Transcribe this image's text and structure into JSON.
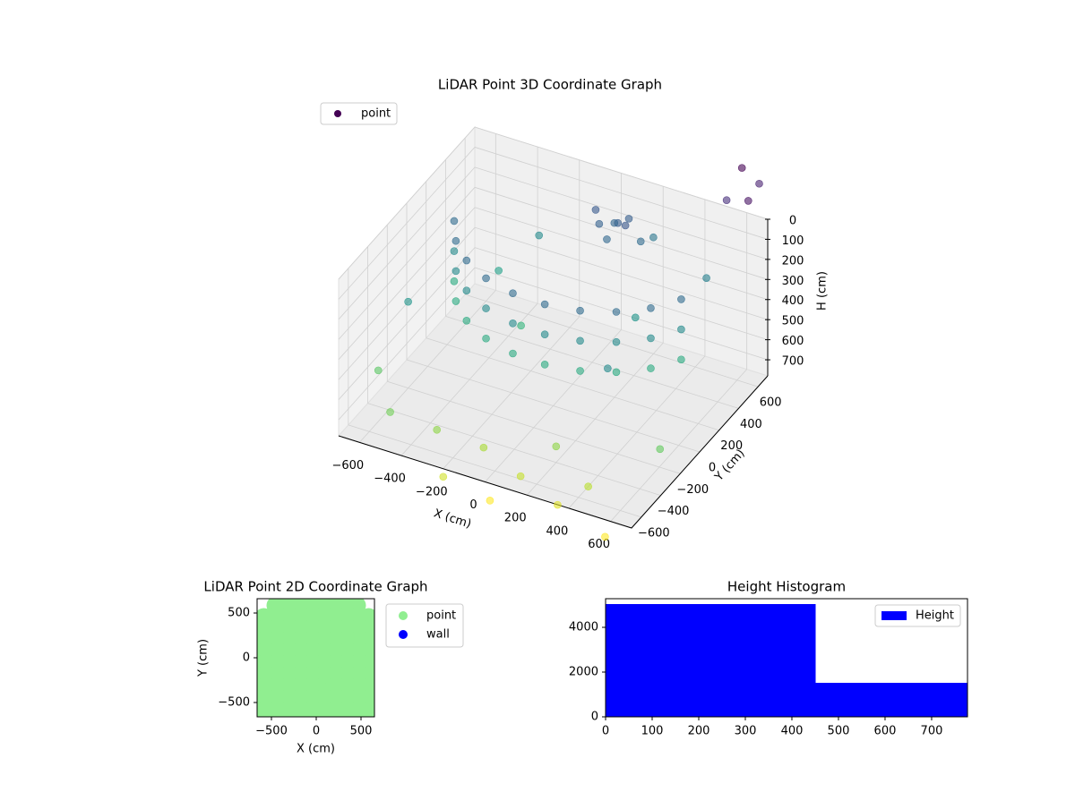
{
  "chart_data": [
    {
      "type": "scatter3d",
      "title": "LiDAR Point 3D Coordinate Graph",
      "x_label": "X (cm)",
      "y_label": "Y (cm)",
      "z_label": "H (cm)",
      "xlim": [
        -700,
        700
      ],
      "ylim": [
        -700,
        700
      ],
      "zlim": [
        0,
        780
      ],
      "z_inverted": true,
      "xticks": [
        {
          "value": -600,
          "label": "−600"
        },
        {
          "value": -400,
          "label": "−400"
        },
        {
          "value": -200,
          "label": "−200"
        },
        0,
        200,
        400,
        600
      ],
      "yticks": [
        {
          "value": -600,
          "label": "−600"
        },
        {
          "value": -400,
          "label": "−400"
        },
        {
          "value": -200,
          "label": "−200"
        },
        0,
        200,
        400,
        600
      ],
      "zticks": [
        0,
        100,
        200,
        300,
        400,
        500,
        600,
        700
      ],
      "grid": true,
      "legend": "upper left",
      "colormap": "viridis",
      "series": [
        {
          "name": "point",
          "color": "#440154",
          "x": [
            -564,
            -491,
            -386,
            -254,
            -104,
            52,
            205,
            344,
            460,
            544,
            -564,
            -491,
            -386,
            -254,
            -104,
            52,
            205,
            344,
            460,
            544,
            -564,
            -491,
            -386,
            -254,
            -104,
            52,
            205,
            344,
            460,
            544,
            100,
            60,
            150,
            20,
            120,
            200,
            -20,
            80,
            -400,
            300,
            -200,
            400,
            -600,
            500,
            -300,
            200,
            -100,
            100,
            300,
            0,
            -300,
            200,
            -500,
            400,
            -200,
            550,
            -650,
            650,
            600,
            700,
            650,
            550
          ],
          "y": [
            195,
            56,
            -60,
            -144,
            -191,
            -198,
            -164,
            -91,
            14,
            146,
            195,
            56,
            -60,
            -144,
            -191,
            -198,
            -164,
            -91,
            14,
            146,
            195,
            56,
            -60,
            -144,
            -191,
            -198,
            -164,
            -91,
            14,
            146,
            450,
            500,
            420,
            430,
            520,
            470,
            480,
            380,
            300,
            200,
            100,
            -300,
            -200,
            500,
            500,
            600,
            -500,
            -550,
            -600,
            -650,
            -550,
            -400,
            -600,
            -500,
            -700,
            -650,
            -400,
            -300,
            650,
            500,
            720,
            600
          ],
          "z": [
            150,
            150,
            150,
            150,
            150,
            150,
            150,
            150,
            150,
            150,
            300,
            300,
            300,
            300,
            300,
            300,
            300,
            300,
            300,
            300,
            450,
            450,
            450,
            450,
            450,
            450,
            450,
            450,
            450,
            450,
            80,
            120,
            60,
            100,
            90,
            150,
            70,
            130,
            400,
            350,
            500,
            300,
            350,
            250,
            300,
            200,
            750,
            800,
            850,
            900,
            700,
            700,
            650,
            780,
            820,
            900,
            600,
            620,
            -250,
            -200,
            -150,
            -100
          ]
        }
      ]
    },
    {
      "type": "scatter",
      "title": "LiDAR Point 2D Coordinate Graph",
      "x_label": "X (cm)",
      "y_label": "Y (cm)",
      "xlim": [
        -660,
        650
      ],
      "ylim": [
        -660,
        660
      ],
      "xticks": [
        {
          "value": -500,
          "label": "−500"
        },
        0,
        500
      ],
      "yticks": [
        {
          "value": -500,
          "label": "−500"
        },
        0,
        500
      ],
      "legend": "outside right",
      "series": [
        {
          "name": "point",
          "color": "#90ee90",
          "x": [
            -455,
            -325,
            -195,
            -65,
            65,
            195,
            325,
            455,
            -585,
            -455,
            -325,
            -195,
            -65,
            65,
            195,
            325,
            455,
            585,
            -585,
            -455,
            -325,
            -195,
            -65,
            65,
            195,
            325,
            455,
            585,
            -585,
            -455,
            -325,
            -195,
            -65,
            65,
            195,
            325,
            455,
            585,
            -585,
            -455,
            -325,
            -195,
            -65,
            65,
            195,
            325,
            455,
            585,
            -585,
            -455,
            -325,
            -195,
            -65,
            65,
            195,
            325,
            455,
            585,
            -585,
            -455,
            -325,
            -195,
            -65,
            65,
            195,
            325,
            455,
            585,
            -585,
            -455,
            -325,
            -195,
            -65,
            65,
            195,
            325,
            455,
            585,
            -585,
            -455,
            -325,
            -195,
            -65,
            65,
            195,
            325,
            455,
            585,
            -585,
            -455,
            -325,
            -195,
            -65,
            65,
            195,
            325,
            455,
            585
          ],
          "y": [
            585,
            585,
            585,
            585,
            585,
            585,
            585,
            585,
            455,
            455,
            455,
            455,
            455,
            455,
            455,
            455,
            455,
            455,
            325,
            325,
            325,
            325,
            325,
            325,
            325,
            325,
            325,
            325,
            195,
            195,
            195,
            195,
            195,
            195,
            195,
            195,
            195,
            195,
            65,
            65,
            65,
            65,
            65,
            65,
            65,
            65,
            65,
            65,
            -65,
            -65,
            -65,
            -65,
            -65,
            -65,
            -65,
            -65,
            -65,
            -65,
            -195,
            -195,
            -195,
            -195,
            -195,
            -195,
            -195,
            -195,
            -195,
            -195,
            -325,
            -325,
            -325,
            -325,
            -325,
            -325,
            -325,
            -325,
            -325,
            -325,
            -455,
            -455,
            -455,
            -455,
            -455,
            -455,
            -455,
            -455,
            -455,
            -455,
            -585,
            -585,
            -585,
            -585,
            -585,
            -585,
            -585,
            -585,
            -585,
            -585
          ]
        },
        {
          "name": "wall",
          "color": "#0000ff",
          "x": [],
          "y": []
        }
      ]
    },
    {
      "type": "histogram",
      "title": "Height Histogram",
      "bins": [
        0,
        451,
        777
      ],
      "xlim": [
        0,
        777
      ],
      "ylim": [
        0,
        5280
      ],
      "xticks": [
        0,
        100,
        200,
        300,
        400,
        500,
        600,
        700
      ],
      "yticks": [
        0,
        2000,
        4000
      ],
      "legend": "upper right",
      "series": [
        {
          "name": "Height",
          "color": "#0000ff",
          "values": [
            5040,
            1520
          ]
        }
      ]
    }
  ]
}
